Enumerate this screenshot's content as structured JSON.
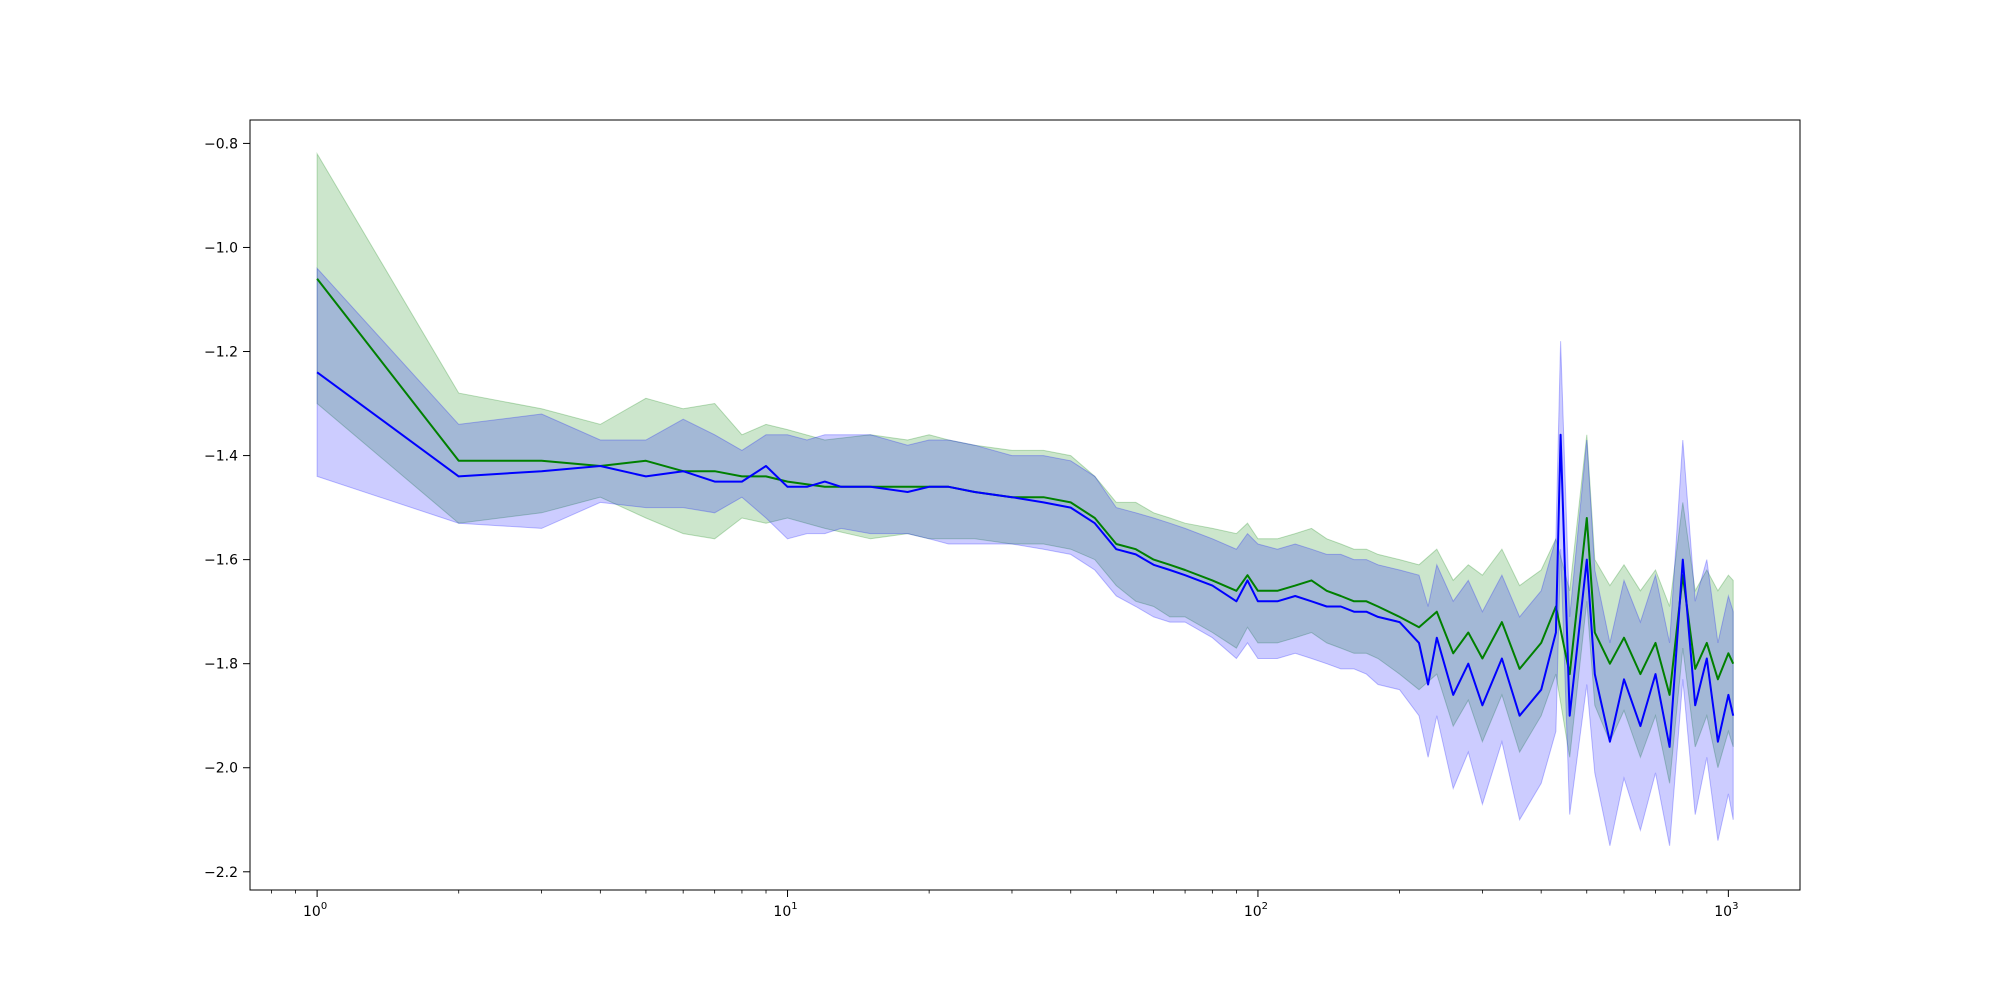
{
  "chart_data": {
    "type": "line",
    "title": "",
    "xlabel": "",
    "ylabel": "",
    "xscale": "log",
    "xlim": [
      0.72,
      1420
    ],
    "ylim": [
      -2.235,
      -0.755
    ],
    "grid": false,
    "legend": "none",
    "x_ticks": [
      {
        "value": 1,
        "base": "10",
        "exp": "0"
      },
      {
        "value": 10,
        "base": "10",
        "exp": "1"
      },
      {
        "value": 100,
        "base": "10",
        "exp": "2"
      },
      {
        "value": 1000,
        "base": "10",
        "exp": "3"
      }
    ],
    "y_ticks": [
      {
        "value": -0.8,
        "label": "−0.8"
      },
      {
        "value": -1.0,
        "label": "−1.0"
      },
      {
        "value": -1.2,
        "label": "−1.2"
      },
      {
        "value": -1.4,
        "label": "−1.4"
      },
      {
        "value": -1.6,
        "label": "−1.6"
      },
      {
        "value": -1.8,
        "label": "−1.8"
      },
      {
        "value": -2.0,
        "label": "−2.0"
      },
      {
        "value": -2.2,
        "label": "−2.2"
      }
    ],
    "series": [
      {
        "color": "#008000",
        "band_color": "#008000",
        "band_opacity": 0.2,
        "x": [
          1,
          2,
          3,
          4,
          5,
          6,
          7,
          8,
          9,
          10,
          12,
          15,
          18,
          20,
          22,
          25,
          30,
          35,
          40,
          45,
          50,
          55,
          60,
          65,
          70,
          80,
          90,
          95,
          100,
          110,
          120,
          130,
          140,
          150,
          160,
          170,
          180,
          200,
          220,
          240,
          260,
          280,
          300,
          330,
          360,
          400,
          430,
          460,
          500,
          520,
          560,
          600,
          650,
          700,
          750,
          800,
          850,
          900,
          950,
          1000,
          1024
        ],
        "y": [
          -1.06,
          -1.41,
          -1.41,
          -1.42,
          -1.41,
          -1.43,
          -1.43,
          -1.44,
          -1.44,
          -1.45,
          -1.46,
          -1.46,
          -1.46,
          -1.46,
          -1.46,
          -1.47,
          -1.48,
          -1.48,
          -1.49,
          -1.52,
          -1.57,
          -1.58,
          -1.6,
          -1.61,
          -1.62,
          -1.64,
          -1.66,
          -1.63,
          -1.66,
          -1.66,
          -1.65,
          -1.64,
          -1.66,
          -1.67,
          -1.68,
          -1.68,
          -1.69,
          -1.71,
          -1.73,
          -1.7,
          -1.78,
          -1.74,
          -1.79,
          -1.72,
          -1.81,
          -1.76,
          -1.69,
          -1.82,
          -1.52,
          -1.74,
          -1.8,
          -1.75,
          -1.82,
          -1.76,
          -1.86,
          -1.63,
          -1.81,
          -1.76,
          -1.83,
          -1.78,
          -1.8
        ],
        "lower": [
          -1.3,
          -1.53,
          -1.51,
          -1.48,
          -1.52,
          -1.55,
          -1.56,
          -1.52,
          -1.53,
          -1.52,
          -1.54,
          -1.56,
          -1.55,
          -1.56,
          -1.56,
          -1.56,
          -1.57,
          -1.57,
          -1.58,
          -1.6,
          -1.65,
          -1.68,
          -1.69,
          -1.71,
          -1.71,
          -1.74,
          -1.77,
          -1.73,
          -1.76,
          -1.76,
          -1.75,
          -1.74,
          -1.76,
          -1.77,
          -1.78,
          -1.78,
          -1.79,
          -1.82,
          -1.85,
          -1.82,
          -1.92,
          -1.87,
          -1.95,
          -1.86,
          -1.97,
          -1.9,
          -1.82,
          -1.98,
          -1.68,
          -1.88,
          -1.95,
          -1.89,
          -1.98,
          -1.9,
          -2.03,
          -1.77,
          -1.96,
          -1.9,
          -2.0,
          -1.93,
          -1.96
        ],
        "upper": [
          -0.82,
          -1.28,
          -1.31,
          -1.34,
          -1.29,
          -1.31,
          -1.3,
          -1.36,
          -1.34,
          -1.35,
          -1.37,
          -1.36,
          -1.37,
          -1.36,
          -1.37,
          -1.38,
          -1.39,
          -1.39,
          -1.4,
          -1.44,
          -1.49,
          -1.49,
          -1.51,
          -1.52,
          -1.53,
          -1.54,
          -1.55,
          -1.53,
          -1.56,
          -1.56,
          -1.55,
          -1.54,
          -1.56,
          -1.57,
          -1.58,
          -1.58,
          -1.59,
          -1.6,
          -1.61,
          -1.58,
          -1.64,
          -1.61,
          -1.63,
          -1.58,
          -1.65,
          -1.62,
          -1.56,
          -1.66,
          -1.36,
          -1.6,
          -1.65,
          -1.61,
          -1.66,
          -1.62,
          -1.69,
          -1.49,
          -1.66,
          -1.62,
          -1.66,
          -1.63,
          -1.64
        ]
      },
      {
        "color": "#0000ff",
        "band_color": "#0000ff",
        "band_opacity": 0.2,
        "x": [
          1,
          2,
          3,
          4,
          5,
          6,
          7,
          8,
          9,
          10,
          11,
          12,
          13,
          15,
          18,
          20,
          22,
          25,
          30,
          35,
          40,
          45,
          50,
          55,
          60,
          65,
          70,
          80,
          90,
          95,
          100,
          110,
          120,
          130,
          140,
          150,
          160,
          170,
          180,
          200,
          220,
          230,
          240,
          260,
          280,
          300,
          330,
          360,
          400,
          430,
          440,
          460,
          500,
          520,
          560,
          600,
          650,
          700,
          750,
          800,
          850,
          900,
          950,
          1000,
          1024
        ],
        "y": [
          -1.24,
          -1.44,
          -1.43,
          -1.42,
          -1.44,
          -1.43,
          -1.45,
          -1.45,
          -1.42,
          -1.46,
          -1.46,
          -1.45,
          -1.46,
          -1.46,
          -1.47,
          -1.46,
          -1.46,
          -1.47,
          -1.48,
          -1.49,
          -1.5,
          -1.53,
          -1.58,
          -1.59,
          -1.61,
          -1.62,
          -1.63,
          -1.65,
          -1.68,
          -1.64,
          -1.68,
          -1.68,
          -1.67,
          -1.68,
          -1.69,
          -1.69,
          -1.7,
          -1.7,
          -1.71,
          -1.72,
          -1.76,
          -1.84,
          -1.75,
          -1.86,
          -1.8,
          -1.88,
          -1.79,
          -1.9,
          -1.85,
          -1.74,
          -1.36,
          -1.9,
          -1.6,
          -1.82,
          -1.95,
          -1.83,
          -1.92,
          -1.82,
          -1.96,
          -1.6,
          -1.88,
          -1.79,
          -1.95,
          -1.86,
          -1.9
        ],
        "lower": [
          -1.44,
          -1.53,
          -1.54,
          -1.49,
          -1.5,
          -1.5,
          -1.51,
          -1.48,
          -1.52,
          -1.56,
          -1.55,
          -1.55,
          -1.54,
          -1.55,
          -1.55,
          -1.56,
          -1.57,
          -1.57,
          -1.57,
          -1.58,
          -1.59,
          -1.62,
          -1.67,
          -1.69,
          -1.71,
          -1.72,
          -1.72,
          -1.75,
          -1.79,
          -1.76,
          -1.79,
          -1.79,
          -1.78,
          -1.79,
          -1.8,
          -1.81,
          -1.81,
          -1.82,
          -1.84,
          -1.85,
          -1.9,
          -1.98,
          -1.9,
          -2.04,
          -1.97,
          -2.07,
          -1.95,
          -2.1,
          -2.03,
          -1.93,
          -1.58,
          -2.09,
          -1.84,
          -2.01,
          -2.15,
          -2.02,
          -2.12,
          -2.01,
          -2.15,
          -1.83,
          -2.09,
          -1.98,
          -2.14,
          -2.05,
          -2.1
        ],
        "upper": [
          -1.04,
          -1.34,
          -1.32,
          -1.37,
          -1.37,
          -1.33,
          -1.36,
          -1.39,
          -1.36,
          -1.36,
          -1.37,
          -1.36,
          -1.36,
          -1.36,
          -1.38,
          -1.37,
          -1.37,
          -1.38,
          -1.4,
          -1.4,
          -1.41,
          -1.44,
          -1.5,
          -1.51,
          -1.52,
          -1.53,
          -1.54,
          -1.56,
          -1.58,
          -1.55,
          -1.57,
          -1.58,
          -1.57,
          -1.58,
          -1.59,
          -1.59,
          -1.6,
          -1.6,
          -1.61,
          -1.62,
          -1.63,
          -1.69,
          -1.61,
          -1.68,
          -1.64,
          -1.7,
          -1.63,
          -1.71,
          -1.66,
          -1.56,
          -1.18,
          -1.71,
          -1.37,
          -1.62,
          -1.76,
          -1.64,
          -1.72,
          -1.63,
          -1.76,
          -1.37,
          -1.68,
          -1.6,
          -1.76,
          -1.67,
          -1.7
        ]
      }
    ]
  }
}
